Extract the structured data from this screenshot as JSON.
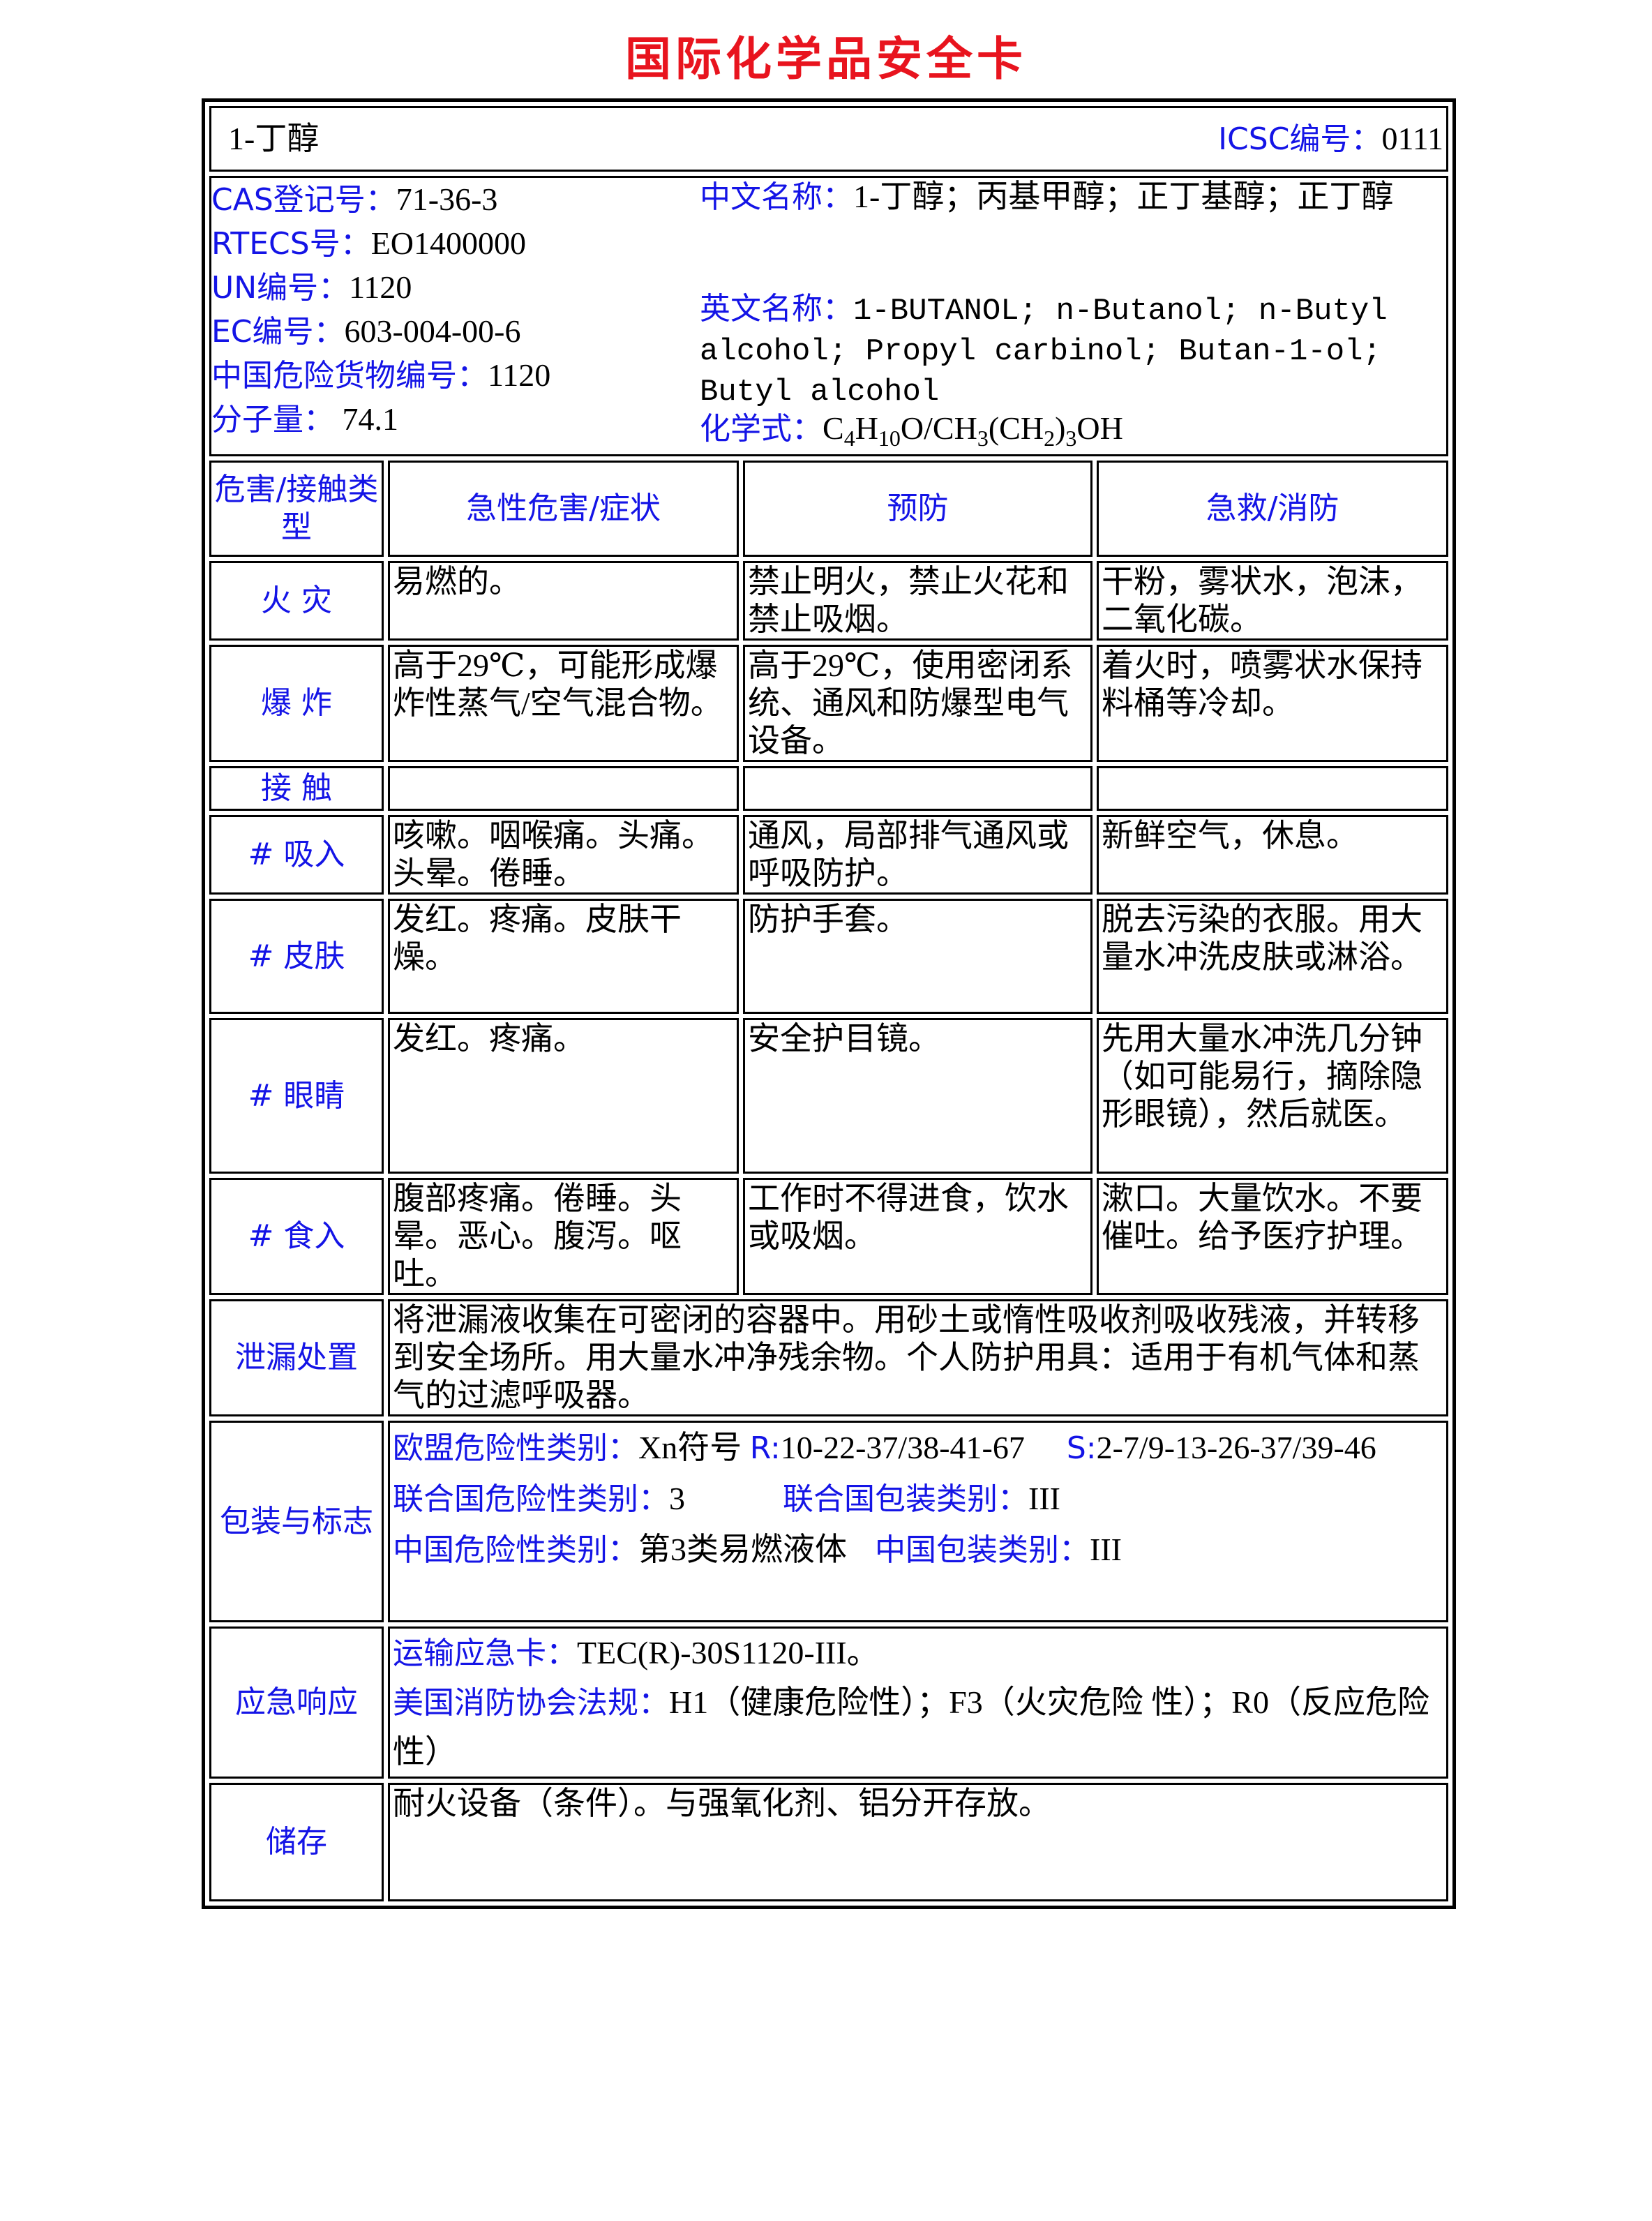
{
  "title": "国际化学品安全卡",
  "header": {
    "name": "1-丁醇",
    "icsc_label": "ICSC编号：",
    "icsc_value": "0111"
  },
  "info": {
    "cas_label": "CAS登记号：",
    "cas": "71-36-3",
    "rtecs_label": "RTECS号：",
    "rtecs": "EO1400000",
    "un_label": "UN编号：",
    "un": "1120",
    "ec_label": "EC编号：",
    "ec": "603-004-00-6",
    "cn_dg_label": "中国危险货物编号：",
    "cn_dg": "1120",
    "mw_label": "分子量：",
    "mw": "74.1",
    "cn_name_label": "中文名称：",
    "cn_name": "1-丁醇；丙基甲醇；正丁基醇；正丁醇",
    "en_name_label": "英文名称：",
    "en_name": "1-BUTANOL; n-Butanol; n-Butyl alcohol; Propyl carbinol; Butan-1-ol; Butyl alcohol",
    "formula_label": "化学式：",
    "formula": {
      "p1": "C",
      "s1": "4",
      "p2": "H",
      "s2": "10",
      "p3": "O/CH",
      "s3": "3",
      "p4": "(CH",
      "s4": "2",
      "p5": ")",
      "s5": "3",
      "p6": "OH"
    }
  },
  "columns": [
    "危害/接触类型",
    "急性危害/症状",
    "预防",
    "急救/消防"
  ],
  "rows": [
    {
      "type": "火 灾",
      "symptom": "易燃的。",
      "prevention": "禁止明火，禁止火花和禁止吸烟。",
      "aid": "干粉，雾状水，泡沫，二氧化碳。"
    },
    {
      "type": "爆 炸",
      "symptom": "高于29℃，可能形成爆炸性蒸气/空气混合物。",
      "prevention": "高于29℃，使用密闭系统、通风和防爆型电气设备。",
      "aid": "着火时，喷雾状水保持料桶等冷却。"
    },
    {
      "type": "接 触",
      "symptom": "",
      "prevention": "",
      "aid": ""
    },
    {
      "type": "# 吸入",
      "symptom": "咳嗽。咽喉痛。头痛。头晕。倦睡。",
      "prevention": "通风，局部排气通风或呼吸防护。",
      "aid": "新鲜空气，休息。"
    },
    {
      "type": "# 皮肤",
      "symptom": "发红。疼痛。皮肤干燥。",
      "prevention": "防护手套。",
      "aid": "脱去污染的衣服。用大量水冲洗皮肤或淋浴。"
    },
    {
      "type": "# 眼睛",
      "symptom": "发红。疼痛。",
      "prevention": "安全护目镜。",
      "aid": "先用大量水冲洗几分钟（如可能易行，摘除隐形眼镜），然后就医。"
    },
    {
      "type": "# 食入",
      "symptom": "腹部疼痛。倦睡。头晕。恶心。腹泻。呕吐。",
      "prevention": "工作时不得进食，饮水或吸烟。",
      "aid": "漱口。大量饮水。不要催吐。给予医疗护理。"
    }
  ],
  "spill": {
    "label": "泄漏处置",
    "text": " 将泄漏液收集在可密闭的容器中。用砂土或惰性吸收剂吸收残液，并转移到安全场所。用大量水冲净残余物。个人防护用具：适用于有机气体和蒸气的过滤呼吸器。"
  },
  "packaging": {
    "label": "包装与标志",
    "eu_label": "欧盟危险性类别：",
    "eu_symbol": "Xn符号",
    "r_label": "R:",
    "r_value": "10-22-37/38-41-67",
    "s_label": "S:",
    "s_value": "2-7/9-13-26-37/39-46",
    "un_class_label": "联合国危险性类别：",
    "un_class": "3",
    "un_pack_label": "联合国包装类别：",
    "un_pack": "III",
    "cn_class_label": "中国危险性类别：",
    "cn_class": "第3类易燃液体",
    "cn_pack_label": "中国包装类别：",
    "cn_pack": "III"
  },
  "emergency": {
    "label": "应急响应",
    "card_label": "运输应急卡：",
    "card": "TEC(R)-30S1120-III。",
    "nfpa_label": "美国消防协会法规：",
    "nfpa": "H1（健康危险性）；F3（火灾危险 性）；R0（反应危险性）"
  },
  "storage": {
    "label": "储存",
    "text": "耐火设备（条件）。与强氧化剂、铝分开存放。"
  },
  "colors": {
    "title": "#e8141e",
    "label": "#1414e6",
    "text": "#000000"
  }
}
